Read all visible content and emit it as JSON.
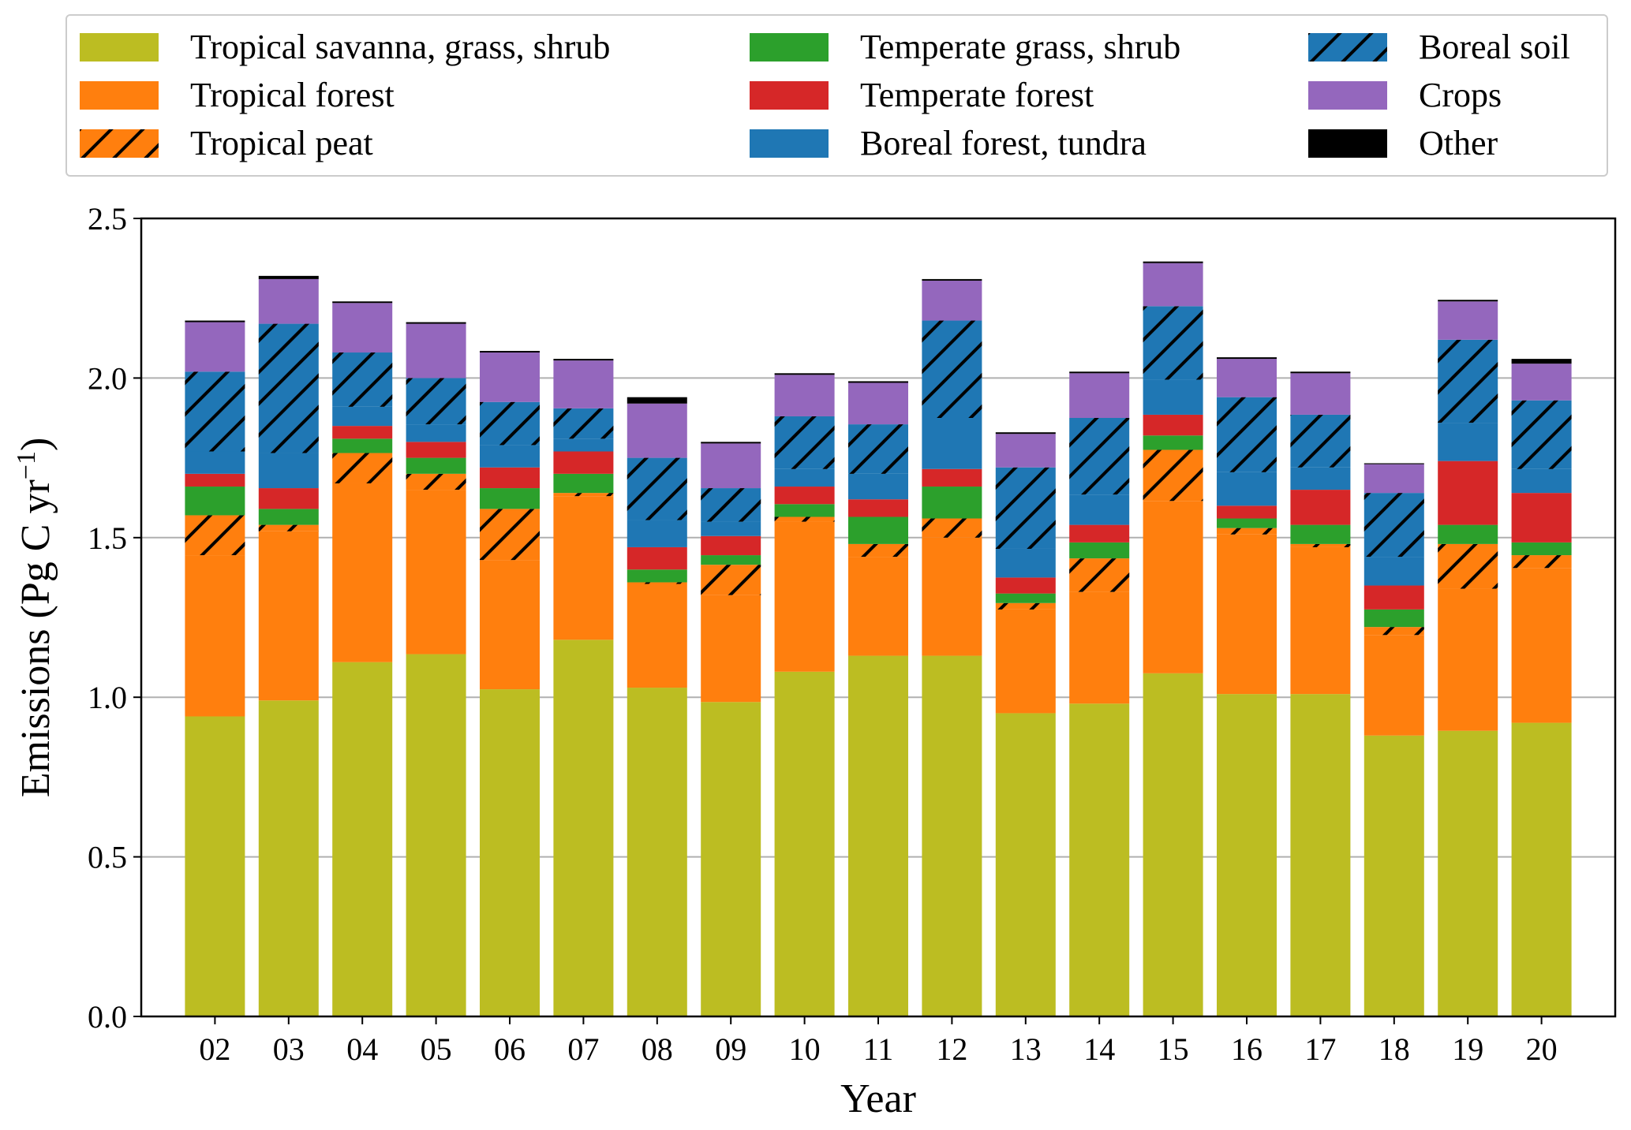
{
  "chart_data": {
    "type": "bar",
    "stacked": true,
    "title": "",
    "xlabel": "Year",
    "ylabel": "Emissions (Pg C yr^-1)",
    "ylim": [
      0,
      2.5
    ],
    "yticks": [
      "0.0",
      "0.5",
      "1.0",
      "1.5",
      "2.0",
      "2.5"
    ],
    "grid": "horizontal",
    "legend_placement": "top, outside plot",
    "categories": [
      "02",
      "03",
      "04",
      "05",
      "06",
      "07",
      "08",
      "09",
      "10",
      "11",
      "12",
      "13",
      "14",
      "15",
      "16",
      "17",
      "18",
      "19",
      "20"
    ],
    "series": [
      {
        "name": "Tropical savanna, grass, shrub",
        "color": "#bcbd22",
        "hatch": false,
        "values": [
          0.94,
          0.99,
          1.11,
          1.135,
          1.025,
          1.18,
          1.03,
          0.985,
          1.08,
          1.13,
          1.13,
          0.95,
          0.98,
          1.075,
          1.01,
          1.01,
          0.88,
          0.895,
          0.92
        ]
      },
      {
        "name": "Tropical forest",
        "color": "#ff7f0e",
        "hatch": false,
        "values": [
          0.505,
          0.53,
          0.56,
          0.515,
          0.405,
          0.45,
          0.325,
          0.335,
          0.47,
          0.31,
          0.37,
          0.325,
          0.35,
          0.54,
          0.5,
          0.46,
          0.315,
          0.445,
          0.485
        ]
      },
      {
        "name": "Tropical peat",
        "color": "#ff7f0e",
        "hatch": true,
        "values": [
          0.125,
          0.02,
          0.095,
          0.05,
          0.16,
          0.01,
          0.005,
          0.095,
          0.015,
          0.04,
          0.06,
          0.02,
          0.105,
          0.16,
          0.02,
          0.01,
          0.025,
          0.14,
          0.04
        ]
      },
      {
        "name": "Temperate grass, shrub",
        "color": "#2ca02c",
        "hatch": false,
        "values": [
          0.09,
          0.05,
          0.045,
          0.05,
          0.065,
          0.06,
          0.04,
          0.03,
          0.04,
          0.085,
          0.1,
          0.03,
          0.05,
          0.045,
          0.03,
          0.06,
          0.055,
          0.06,
          0.04
        ]
      },
      {
        "name": "Temperate forest",
        "color": "#d62728",
        "hatch": false,
        "values": [
          0.04,
          0.065,
          0.04,
          0.05,
          0.065,
          0.07,
          0.07,
          0.06,
          0.055,
          0.055,
          0.055,
          0.05,
          0.055,
          0.065,
          0.04,
          0.11,
          0.075,
          0.2,
          0.155
        ]
      },
      {
        "name": "Boreal forest, tundra",
        "color": "#1f77b4",
        "hatch": false,
        "values": [
          0.07,
          0.11,
          0.06,
          0.055,
          0.07,
          0.04,
          0.085,
          0.045,
          0.055,
          0.08,
          0.16,
          0.09,
          0.095,
          0.11,
          0.105,
          0.07,
          0.09,
          0.12,
          0.075
        ]
      },
      {
        "name": "Boreal soil",
        "color": "#1f77b4",
        "hatch": true,
        "values": [
          0.25,
          0.405,
          0.17,
          0.145,
          0.135,
          0.095,
          0.195,
          0.105,
          0.165,
          0.155,
          0.305,
          0.255,
          0.24,
          0.23,
          0.235,
          0.165,
          0.2,
          0.26,
          0.215
        ]
      },
      {
        "name": "Crops",
        "color": "#9467bd",
        "hatch": false,
        "values": [
          0.155,
          0.14,
          0.155,
          0.17,
          0.155,
          0.15,
          0.17,
          0.14,
          0.13,
          0.13,
          0.125,
          0.105,
          0.14,
          0.135,
          0.12,
          0.13,
          0.09,
          0.12,
          0.115
        ]
      },
      {
        "name": "Other",
        "color": "#000000",
        "hatch": false,
        "values": [
          0.005,
          0.01,
          0.005,
          0.005,
          0.005,
          0.005,
          0.02,
          0.005,
          0.005,
          0.005,
          0.005,
          0.005,
          0.005,
          0.005,
          0.005,
          0.005,
          0.003,
          0.005,
          0.015
        ]
      }
    ]
  }
}
